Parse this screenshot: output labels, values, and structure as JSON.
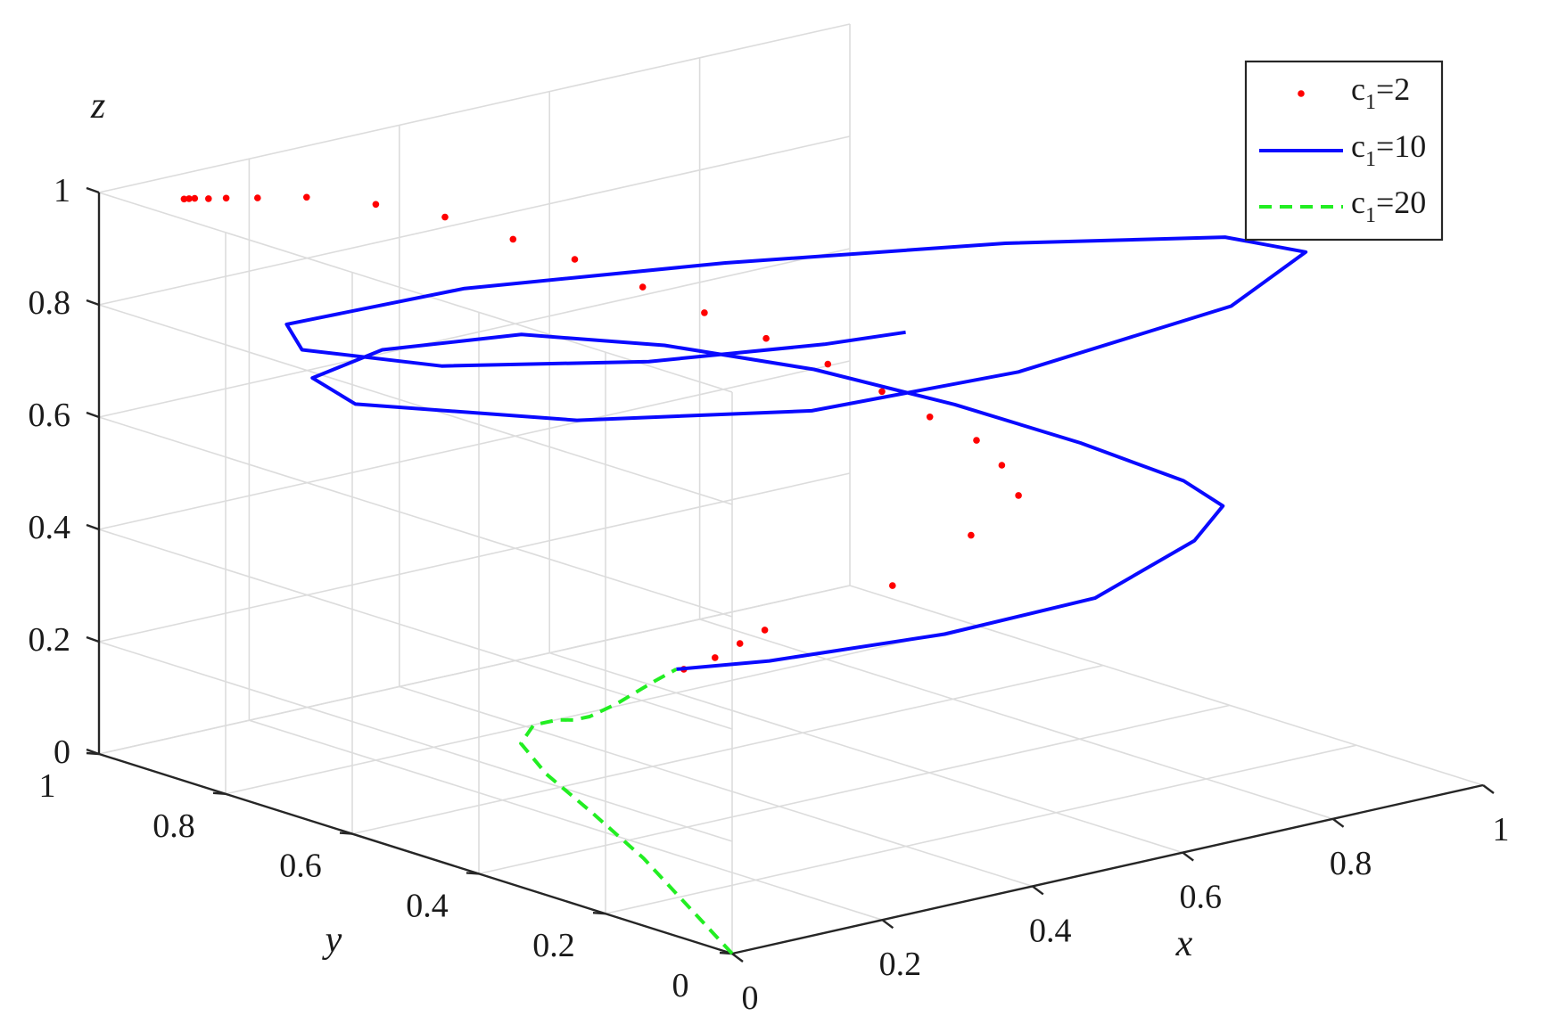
{
  "chart_data": {
    "type": "line3d",
    "xlabel": "x",
    "ylabel": "y",
    "zlabel": "z",
    "xlim": [
      0,
      1
    ],
    "ylim": [
      0,
      1
    ],
    "zlim": [
      0,
      1
    ],
    "grid": true,
    "legend_placement": "top-right",
    "x_ticks": [
      "0",
      "0.2",
      "0.4",
      "0.6",
      "0.8",
      "1"
    ],
    "y_ticks": [
      "0",
      "0.2",
      "0.4",
      "0.6",
      "0.8",
      "1"
    ],
    "z_ticks": [
      "0",
      "0.2",
      "0.4",
      "0.6",
      "0.8",
      "1"
    ],
    "series": [
      {
        "name": "c₁=2",
        "legend_base": "c",
        "legend_sub": "1",
        "legend_rest": "=2",
        "style": "dotted-markers",
        "color": "#ff0000",
        "points": [
          [
            0.02,
            0.1,
            0.465
          ],
          [
            0.07,
            0.11,
            0.467
          ],
          [
            0.12,
            0.13,
            0.47
          ],
          [
            0.17,
            0.15,
            0.472
          ],
          [
            0.34,
            0.15,
            0.5
          ],
          [
            0.47,
            0.18,
            0.54
          ],
          [
            0.55,
            0.2,
            0.58
          ],
          [
            0.57,
            0.25,
            0.61
          ],
          [
            0.57,
            0.29,
            0.64
          ],
          [
            0.55,
            0.34,
            0.67
          ],
          [
            0.52,
            0.38,
            0.71
          ],
          [
            0.49,
            0.43,
            0.75
          ],
          [
            0.45,
            0.48,
            0.79
          ],
          [
            0.41,
            0.53,
            0.83
          ],
          [
            0.37,
            0.58,
            0.87
          ],
          [
            0.33,
            0.64,
            0.91
          ],
          [
            0.29,
            0.69,
            0.94
          ],
          [
            0.25,
            0.75,
            0.97
          ],
          [
            0.2,
            0.8,
            0.99
          ],
          [
            0.15,
            0.85,
            1.0
          ],
          [
            0.11,
            0.88,
            1.0
          ],
          [
            0.085,
            0.9,
            1.0
          ],
          [
            0.07,
            0.91,
            1.0
          ],
          [
            0.06,
            0.92,
            1.0
          ],
          [
            0.055,
            0.923,
            1.0
          ],
          [
            0.05,
            0.925,
            1.0
          ]
        ]
      },
      {
        "name": "c₁=10",
        "legend_base": "c",
        "legend_sub": "1",
        "legend_rest": "=10",
        "style": "solid",
        "color": "#0a0aff",
        "points": [
          [
            0.01,
            0.1,
            0.468
          ],
          [
            0.1,
            0.06,
            0.47
          ],
          [
            0.3,
            0.02,
            0.472
          ],
          [
            0.5,
            0.02,
            0.476
          ],
          [
            0.7,
            0.1,
            0.49
          ],
          [
            0.78,
            0.15,
            0.51
          ],
          [
            0.77,
            0.2,
            0.54
          ],
          [
            0.7,
            0.28,
            0.6
          ],
          [
            0.6,
            0.36,
            0.67
          ],
          [
            0.48,
            0.44,
            0.74
          ],
          [
            0.34,
            0.51,
            0.8
          ],
          [
            0.2,
            0.57,
            0.84
          ],
          [
            0.04,
            0.6,
            0.85
          ],
          [
            -0.07,
            0.58,
            0.84
          ],
          [
            -0.08,
            0.5,
            0.825
          ],
          [
            0.08,
            0.34,
            0.805
          ],
          [
            0.3,
            0.23,
            0.795
          ],
          [
            0.55,
            0.2,
            0.8
          ],
          [
            0.85,
            0.22,
            0.82
          ],
          [
            1.0,
            0.28,
            0.85
          ],
          [
            0.96,
            0.36,
            0.86
          ],
          [
            0.76,
            0.47,
            0.87
          ],
          [
            0.48,
            0.58,
            0.88
          ],
          [
            0.2,
            0.66,
            0.89
          ],
          [
            -0.02,
            0.68,
            0.885
          ],
          [
            -0.05,
            0.62,
            0.87
          ],
          [
            0.06,
            0.53,
            0.84
          ],
          [
            0.26,
            0.44,
            0.82
          ],
          [
            0.46,
            0.4,
            0.805
          ],
          [
            0.56,
            0.39,
            0.8
          ]
        ]
      },
      {
        "name": "c₁=20",
        "legend_base": "c",
        "legend_sub": "1",
        "legend_rest": "=20",
        "style": "dashed",
        "color": "#22ee22",
        "points": [
          [
            0.0,
            0.0,
            0.0
          ],
          [
            0.0,
            0.07,
            0.06
          ],
          [
            0.0,
            0.14,
            0.12
          ],
          [
            -0.01,
            0.21,
            0.18
          ],
          [
            -0.02,
            0.27,
            0.23
          ],
          [
            -0.02,
            0.31,
            0.27
          ],
          [
            -0.02,
            0.29,
            0.31
          ],
          [
            -0.03,
            0.24,
            0.34
          ],
          [
            -0.06,
            0.18,
            0.37
          ],
          [
            -0.08,
            0.13,
            0.4
          ],
          [
            -0.07,
            0.1,
            0.43
          ],
          [
            -0.02,
            0.1,
            0.455
          ],
          [
            0.01,
            0.1,
            0.468
          ]
        ]
      }
    ]
  }
}
